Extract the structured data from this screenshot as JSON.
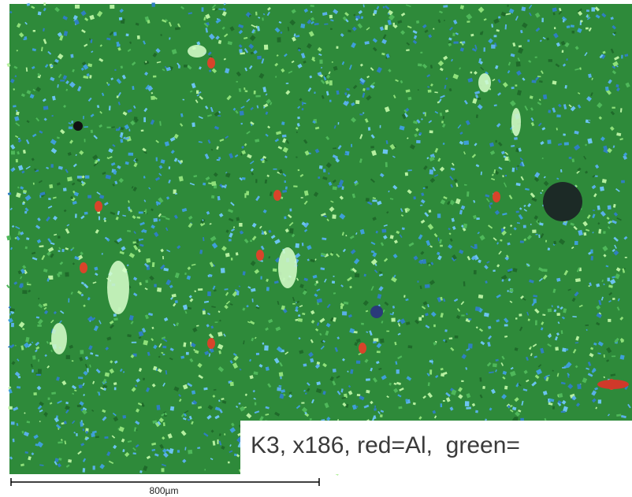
{
  "caption": "K3, x186, red=Al,  green=",
  "scale_bar": {
    "label": "800µm"
  }
}
